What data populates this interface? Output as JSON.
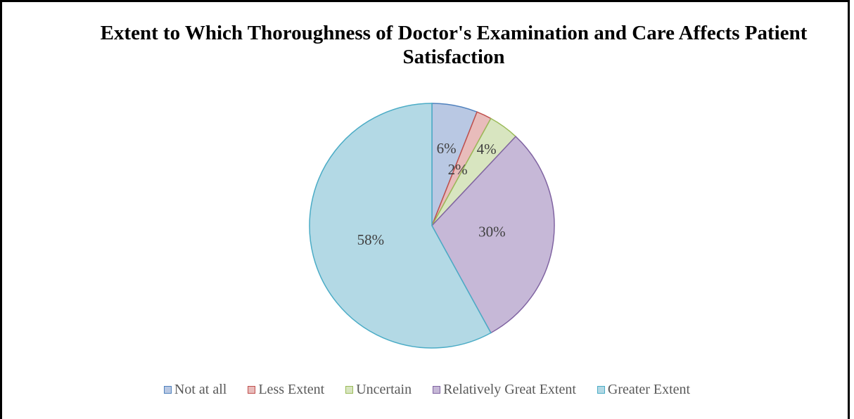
{
  "chart_data": {
    "type": "pie",
    "title": "Extent to Which Thoroughness of Doctor's Examination and Care Affects Patient Satisfaction",
    "categories": [
      "Not at all",
      "Less Extent",
      "Uncertain",
      "Relatively Great Extent",
      "Greater Extent"
    ],
    "values": [
      6,
      2,
      4,
      30,
      58
    ],
    "value_labels": [
      "6%",
      "2%",
      "4%",
      "30%",
      "58%"
    ],
    "colors": [
      "#b9c8e3",
      "#e8bcbb",
      "#d8e5c0",
      "#c6b8d7",
      "#b3d9e5"
    ],
    "edge_colors": [
      "#4f81bd",
      "#c0504d",
      "#9bbb59",
      "#8064a2",
      "#4bacc6"
    ],
    "legend": "bottom"
  }
}
